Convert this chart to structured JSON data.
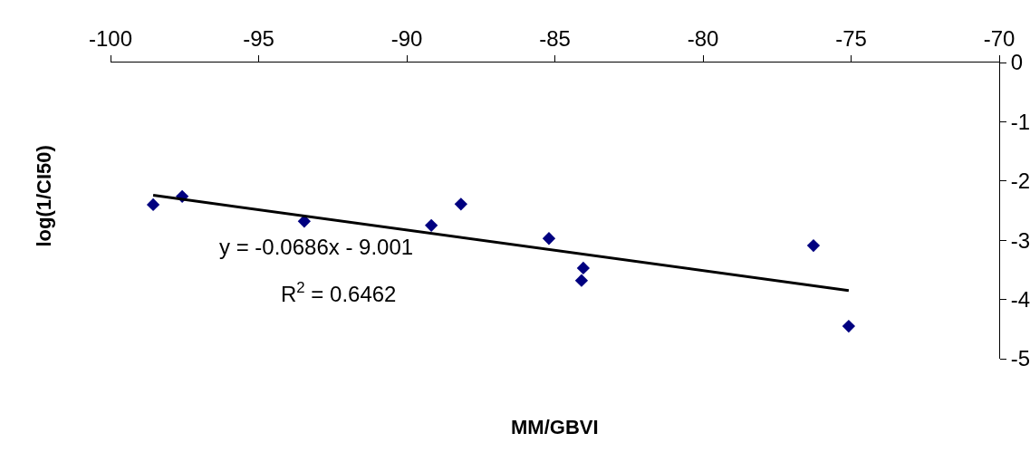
{
  "chart_data": {
    "type": "scatter",
    "xlabel": "MM/GBVI",
    "ylabel": "log(1/CI50)",
    "annotations": [
      "y = -0.0686x - 9.001",
      "R$^{2}$ = 0.6462"
    ],
    "xlim": [
      -100,
      -70
    ],
    "xticks": [
      -100,
      -95,
      -90,
      -85,
      -80,
      -75,
      -70
    ],
    "ylim": [
      -5,
      0
    ],
    "yticks": [
      -5,
      -4,
      -3,
      -2,
      -1,
      0
    ],
    "grid": false,
    "marker": "diamond",
    "x": [
      -98.56,
      -97.58,
      -93.46,
      -89.17,
      -88.17,
      -85.2,
      -84.04,
      -84.1,
      -76.27,
      -75.08
    ],
    "series": [
      {
        "color": "#000080",
        "values": [
          -2.4,
          -2.26,
          -2.68,
          -2.75,
          -2.39,
          -2.97,
          -3.47,
          -3.68,
          -3.09,
          -4.45
        ]
      },
      {
        "type": "line",
        "color": "#000000",
        "marker": "none",
        "line_style": "solid",
        "x": [
          -98.56,
          -75.08
        ],
        "values": [
          -2.24,
          -3.85
        ]
      }
    ]
  }
}
